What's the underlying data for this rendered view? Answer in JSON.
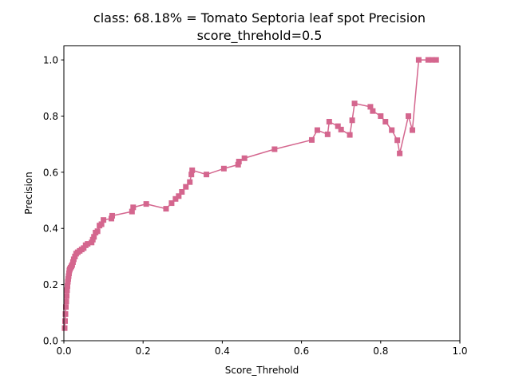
{
  "chart_data": {
    "type": "line",
    "title": "class: 68.18% = Tomato Septoria leaf spot Precision",
    "subtitle": "score_threhold=0.5",
    "xlabel": "Score_Threhold",
    "ylabel": "Precision",
    "xlim": [
      0.0,
      1.0
    ],
    "ylim": [
      0.0,
      1.05
    ],
    "xticks": [
      "0.0",
      "0.2",
      "0.4",
      "0.6",
      "0.8",
      "1.0"
    ],
    "yticks": [
      "0.0",
      "0.2",
      "0.4",
      "0.6",
      "0.8",
      "1.0"
    ],
    "grid": false,
    "marker": "square",
    "color": "#d4668e",
    "series": [
      {
        "x": [
          0.002,
          0.003,
          0.004,
          0.005,
          0.006,
          0.007,
          0.008,
          0.009,
          0.01,
          0.011,
          0.012,
          0.013,
          0.014,
          0.015,
          0.017,
          0.019,
          0.021,
          0.023,
          0.025,
          0.028,
          0.031,
          0.035,
          0.04,
          0.045,
          0.05,
          0.055,
          0.06,
          0.07,
          0.073,
          0.076,
          0.08,
          0.085,
          0.09,
          0.095,
          0.1,
          0.12,
          0.122,
          0.172,
          0.175,
          0.208,
          0.258,
          0.272,
          0.282,
          0.29,
          0.298,
          0.308,
          0.318,
          0.322,
          0.324,
          0.36,
          0.404,
          0.44,
          0.442,
          0.456,
          0.532,
          0.626,
          0.64,
          0.666,
          0.67,
          0.692,
          0.7,
          0.722,
          0.728,
          0.734,
          0.774,
          0.78,
          0.8,
          0.812,
          0.828,
          0.842,
          0.848,
          0.87,
          0.88,
          0.896,
          0.92,
          0.93,
          0.94
        ],
        "y": [
          0.045,
          0.07,
          0.095,
          0.12,
          0.14,
          0.16,
          0.18,
          0.195,
          0.21,
          0.22,
          0.23,
          0.24,
          0.25,
          0.255,
          0.26,
          0.265,
          0.27,
          0.28,
          0.29,
          0.3,
          0.31,
          0.315,
          0.32,
          0.325,
          0.33,
          0.34,
          0.345,
          0.35,
          0.36,
          0.37,
          0.385,
          0.39,
          0.41,
          0.415,
          0.43,
          0.435,
          0.445,
          0.46,
          0.475,
          0.487,
          0.47,
          0.49,
          0.505,
          0.515,
          0.53,
          0.548,
          0.565,
          0.592,
          0.607,
          0.592,
          0.613,
          0.627,
          0.638,
          0.65,
          0.682,
          0.715,
          0.75,
          0.735,
          0.78,
          0.764,
          0.752,
          0.733,
          0.785,
          0.845,
          0.833,
          0.818,
          0.8,
          0.78,
          0.75,
          0.714,
          0.667,
          0.8,
          0.75,
          1.0,
          1.0,
          1.0,
          1.0
        ]
      }
    ]
  }
}
